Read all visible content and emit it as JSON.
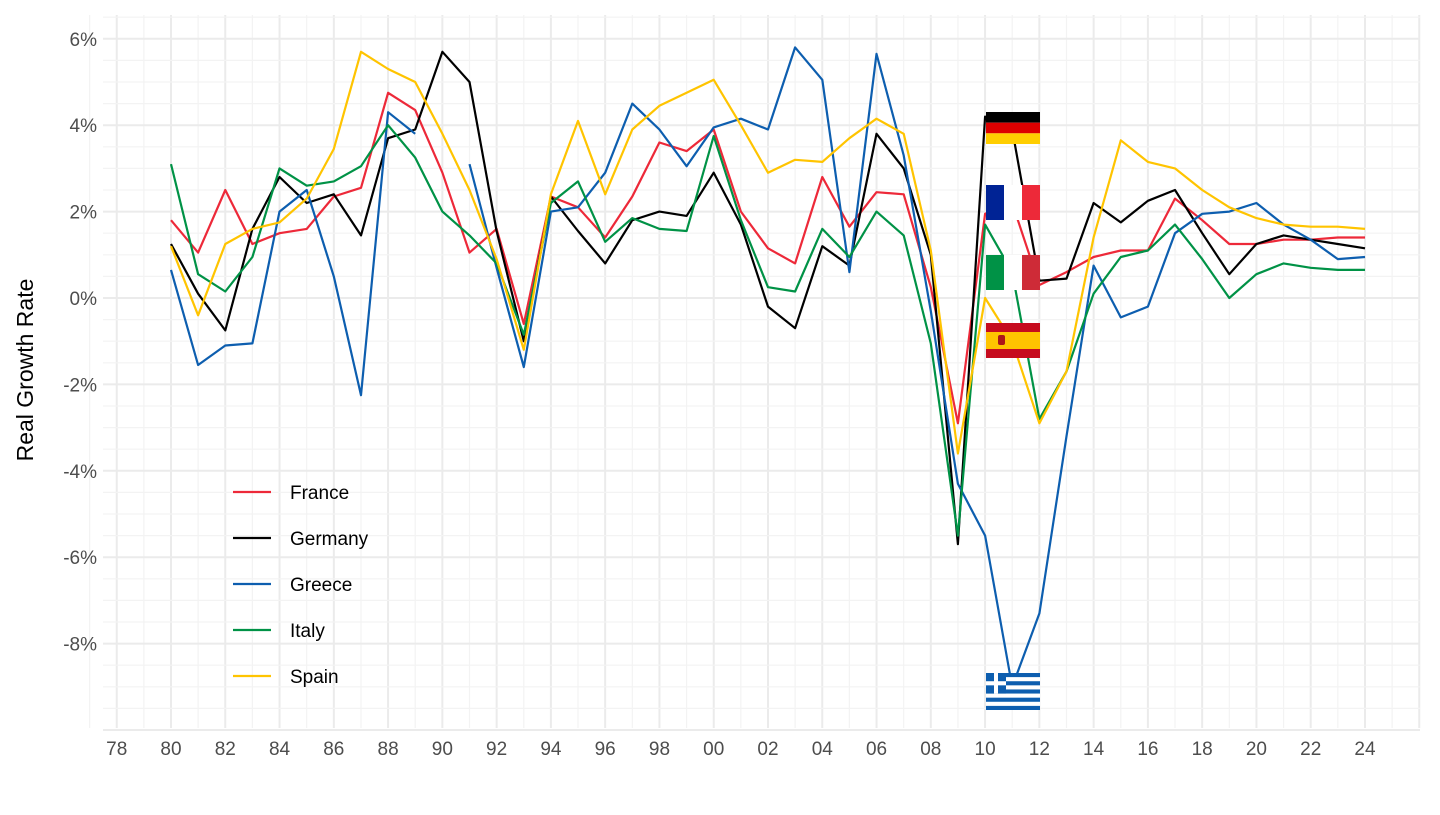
{
  "chart_data": {
    "type": "line",
    "title": "",
    "xlabel": "",
    "ylabel": "Real Growth Rate",
    "xlim": [
      1978,
      2026
    ],
    "ylim": [
      -10,
      6.5
    ],
    "grid": true,
    "legend_position": "bottom-left",
    "x_tick_labels": [
      "78",
      "80",
      "82",
      "84",
      "86",
      "88",
      "90",
      "92",
      "94",
      "96",
      "98",
      "00",
      "02",
      "04",
      "06",
      "08",
      "10",
      "12",
      "14",
      "16",
      "18",
      "20",
      "22",
      "24"
    ],
    "x_ticks": [
      1978,
      1980,
      1982,
      1984,
      1986,
      1988,
      1990,
      1992,
      1994,
      1996,
      1998,
      2000,
      2002,
      2004,
      2006,
      2008,
      2010,
      2012,
      2014,
      2016,
      2018,
      2020,
      2022,
      2024
    ],
    "y_ticks": [
      6,
      4,
      2,
      0,
      -2,
      -4,
      -6,
      -8
    ],
    "y_tick_labels": [
      "6%",
      "4%",
      "2%",
      "0%",
      "-2%",
      "-4%",
      "-6%",
      "-8%"
    ],
    "x": [
      1980,
      1981,
      1982,
      1983,
      1984,
      1985,
      1986,
      1987,
      1988,
      1989,
      1990,
      1991,
      1992,
      1993,
      1994,
      1995,
      1996,
      1997,
      1998,
      1999,
      2000,
      2001,
      2002,
      2003,
      2004,
      2005,
      2006,
      2007,
      2008,
      2009,
      2010,
      2011,
      2012,
      2013,
      2014,
      2015,
      2016,
      2017,
      2018,
      2019,
      2020,
      2021,
      2022,
      2023,
      2024
    ],
    "series": [
      {
        "name": "France",
        "color": "#ed2939",
        "flag": "france",
        "values": [
          1.8,
          1.05,
          2.5,
          1.25,
          1.5,
          1.6,
          2.35,
          2.55,
          4.75,
          4.35,
          2.9,
          1.05,
          1.6,
          -0.6,
          2.35,
          2.1,
          1.4,
          2.35,
          3.6,
          3.4,
          3.9,
          2.0,
          1.15,
          0.8,
          2.8,
          1.65,
          2.45,
          2.4,
          0.25,
          -2.9,
          1.95,
          2.2,
          0.3,
          0.6,
          0.95,
          1.1,
          1.1,
          2.3,
          1.8,
          1.25,
          1.25,
          1.35,
          1.35,
          1.4,
          1.4
        ]
      },
      {
        "name": "Germany",
        "color": "#000000",
        "flag": "germany",
        "values": [
          1.25,
          0.1,
          -0.75,
          1.6,
          2.8,
          2.2,
          2.4,
          1.45,
          3.7,
          3.9,
          5.7,
          5.0,
          1.55,
          -1.0,
          2.35,
          1.55,
          0.8,
          1.8,
          2.0,
          1.9,
          2.9,
          1.7,
          -0.2,
          -0.7,
          1.2,
          0.75,
          3.8,
          3.0,
          1.0,
          -5.7,
          4.2,
          3.9,
          0.4,
          0.45,
          2.2,
          1.75,
          2.25,
          2.5,
          1.5,
          0.55,
          1.25,
          1.45,
          1.35,
          1.25,
          1.15
        ]
      },
      {
        "name": "Greece",
        "color": "#0d5eaf",
        "flag": "greece",
        "values": [
          0.65,
          -1.55,
          -1.1,
          -1.05,
          2.0,
          2.5,
          0.5,
          -2.25,
          4.3,
          3.8,
          null,
          3.1,
          0.7,
          -1.6,
          2.0,
          2.1,
          2.9,
          4.5,
          3.9,
          3.05,
          3.95,
          4.15,
          3.9,
          5.8,
          5.05,
          0.6,
          5.65,
          3.3,
          -0.3,
          -4.3,
          -5.5,
          -9.0,
          -7.3,
          -3.2,
          0.75,
          -0.45,
          -0.2,
          1.5,
          1.95,
          2.0,
          2.2,
          1.7,
          1.35,
          0.9,
          0.95
        ]
      },
      {
        "name": "Italy",
        "color": "#009246",
        "flag": "italy",
        "values": [
          3.1,
          0.55,
          0.15,
          0.95,
          3.0,
          2.6,
          2.7,
          3.05,
          4.0,
          3.25,
          2.0,
          1.45,
          0.8,
          -0.85,
          2.2,
          2.7,
          1.3,
          1.85,
          1.6,
          1.55,
          3.75,
          1.8,
          0.25,
          0.15,
          1.6,
          0.95,
          2.0,
          1.45,
          -1.05,
          -5.5,
          1.7,
          0.6,
          -2.8,
          -1.7,
          0.1,
          0.95,
          1.1,
          1.7,
          0.9,
          0.0,
          0.55,
          0.8,
          0.7,
          0.65,
          0.65
        ]
      },
      {
        "name": "Spain",
        "color": "#ffc400",
        "flag": "spain",
        "values": [
          1.2,
          -0.4,
          1.25,
          1.6,
          1.75,
          2.3,
          3.45,
          5.7,
          5.3,
          5.0,
          3.8,
          2.5,
          0.9,
          -1.2,
          2.4,
          4.1,
          2.4,
          3.9,
          4.45,
          4.75,
          5.05,
          4.0,
          2.9,
          3.2,
          3.15,
          3.7,
          4.15,
          3.8,
          1.1,
          -3.6,
          0.0,
          -1.0,
          -2.9,
          -1.7,
          1.4,
          3.65,
          3.15,
          3.0,
          2.5,
          2.1,
          1.85,
          1.7,
          1.65,
          1.65,
          1.6
        ]
      }
    ]
  }
}
